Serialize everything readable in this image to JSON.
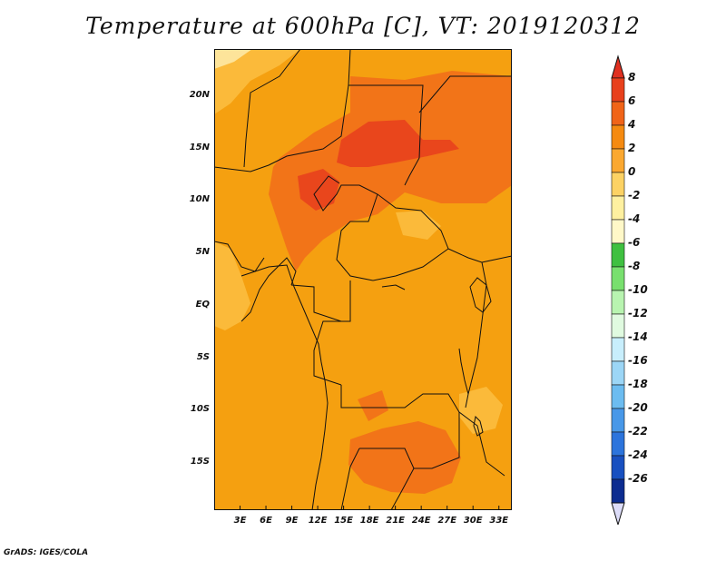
{
  "title": "Temperature at 600hPa [C], VT: 2019120312",
  "credit": "GrADS: IGES/COLA",
  "map": {
    "lat_labels": [
      "20N",
      "15N",
      "10N",
      "5N",
      "EQ",
      "5S",
      "10S",
      "15S"
    ],
    "lat_values": [
      20,
      15,
      10,
      5,
      0,
      -5,
      -10,
      -15
    ],
    "lon_labels": [
      "3E",
      "6E",
      "9E",
      "12E",
      "15E",
      "18E",
      "21E",
      "24E",
      "27E",
      "30E",
      "33E"
    ],
    "lon_values": [
      3,
      6,
      9,
      12,
      15,
      18,
      21,
      24,
      27,
      30,
      33
    ],
    "lon_range": [
      0,
      34.5
    ],
    "lat_range": [
      -19.5,
      24.5
    ]
  },
  "colorbar": {
    "labels": [
      "8",
      "6",
      "4",
      "2",
      "0",
      "-2",
      "-4",
      "-6",
      "-8",
      "-10",
      "-12",
      "-14",
      "-16",
      "-18",
      "-20",
      "-22",
      "-24",
      "-26"
    ],
    "colors": [
      "#e8401c",
      "#f06418",
      "#f58a10",
      "#fba830",
      "#fcd264",
      "#fef0a0",
      "#fff8c8",
      "#3fc040",
      "#78e06e",
      "#b8f4b0",
      "#e0fae0",
      "#c8eefc",
      "#9cd6f6",
      "#6cbcf0",
      "#4898e8",
      "#2c74dc",
      "#1850c0",
      "#0c2c90"
    ],
    "top_arrow_color": "#e03020",
    "bottom_arrow_color": "#dcdcf8"
  }
}
